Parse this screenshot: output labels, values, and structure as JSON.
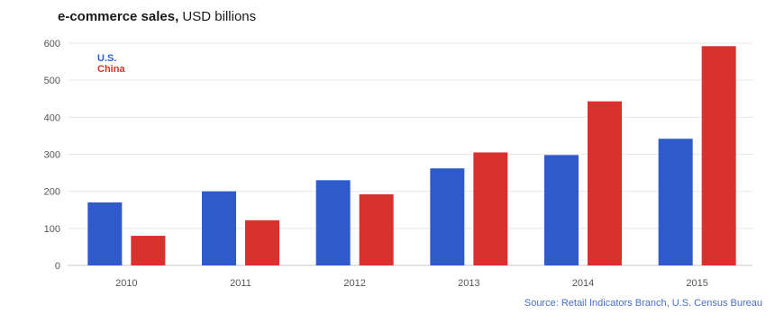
{
  "chart_data": {
    "type": "bar",
    "title_bold": "e-commerce sales,",
    "title_rest": " USD billions",
    "categories": [
      "2010",
      "2011",
      "2012",
      "2013",
      "2014",
      "2015"
    ],
    "series": [
      {
        "name": "U.S.",
        "color": "#2e5bc9",
        "values": [
          170,
          200,
          230,
          262,
          298,
          342
        ]
      },
      {
        "name": "China",
        "color": "#d9322e",
        "values": [
          80,
          122,
          192,
          305,
          443,
          592
        ]
      }
    ],
    "ylim": [
      0,
      600
    ],
    "yticks": [
      0,
      100,
      200,
      300,
      400,
      500,
      600
    ],
    "grid": true,
    "legend_position": "top-left",
    "source": "Source: Retail Indicators Branch, U.S. Census Bureau"
  }
}
